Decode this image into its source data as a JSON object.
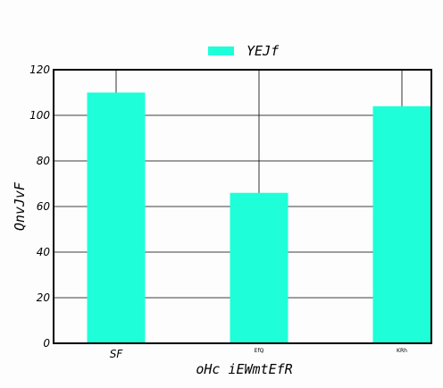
{
  "chart_data": {
    "type": "bar",
    "categories": [
      "SF",
      "EfQ",
      "KRh"
    ],
    "series": [
      {
        "name": "YEJf",
        "values": [
          110,
          66,
          104
        ]
      }
    ],
    "xlabel": "oHc iEWmtEfR",
    "ylabel": "QnvJvF",
    "ylim": [
      0,
      120
    ],
    "yticks": [
      0,
      20,
      40,
      60,
      80,
      100,
      120
    ],
    "grid": true,
    "legend": "top-center",
    "colors": {
      "bar": "#1effd9",
      "grid": "#000000",
      "axis": "#000000"
    }
  }
}
